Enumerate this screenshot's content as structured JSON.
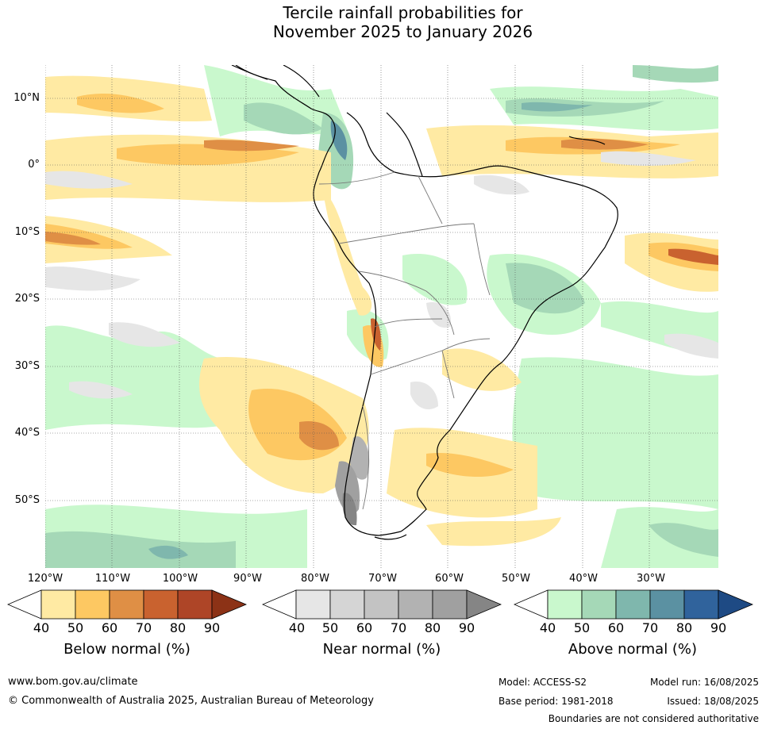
{
  "title": {
    "line1": "Tercile rainfall probabilities for",
    "line2": "November 2025 to January 2026"
  },
  "map": {
    "lat_labels": [
      "10°N",
      "0°",
      "10°S",
      "20°S",
      "30°S",
      "40°S",
      "50°S"
    ],
    "lon_labels": [
      "120°W",
      "110°W",
      "100°W",
      "90°W",
      "80°W",
      "70°W",
      "60°W",
      "50°W",
      "40°W",
      "30°W"
    ]
  },
  "legend": {
    "below": {
      "title": "Below normal (%)",
      "ticks": [
        "40",
        "50",
        "60",
        "70",
        "80",
        "90"
      ],
      "colors": [
        "#ffffff",
        "#ffeaa3",
        "#fdc862",
        "#df8f45",
        "#c9622f",
        "#ae4527",
        "#8c3216"
      ]
    },
    "near": {
      "title": "Near normal (%)",
      "ticks": [
        "40",
        "50",
        "60",
        "70",
        "80",
        "90"
      ],
      "colors": [
        "#ffffff",
        "#e6e6e6",
        "#d5d5d5",
        "#c3c3c3",
        "#b2b2b2",
        "#a0a0a0",
        "#858585"
      ]
    },
    "above": {
      "title": "Above normal (%)",
      "ticks": [
        "40",
        "50",
        "60",
        "70",
        "80",
        "90"
      ],
      "colors": [
        "#ffffff",
        "#c9f8cd",
        "#a5d8b7",
        "#7fb7ad",
        "#5b91a2",
        "#30639c",
        "#1e4a84"
      ]
    }
  },
  "footer": {
    "website": "www.bom.gov.au/climate",
    "copyright": "© Commonwealth of Australia 2025, Australian Bureau of Meteorology",
    "model": "Model: ACCESS-S2",
    "base_period": "Base period: 1981-2018",
    "model_run": "Model run: 16/08/2025",
    "issued": "Issued: 18/08/2025",
    "disclaimer": "Boundaries are not considered authoritative"
  }
}
